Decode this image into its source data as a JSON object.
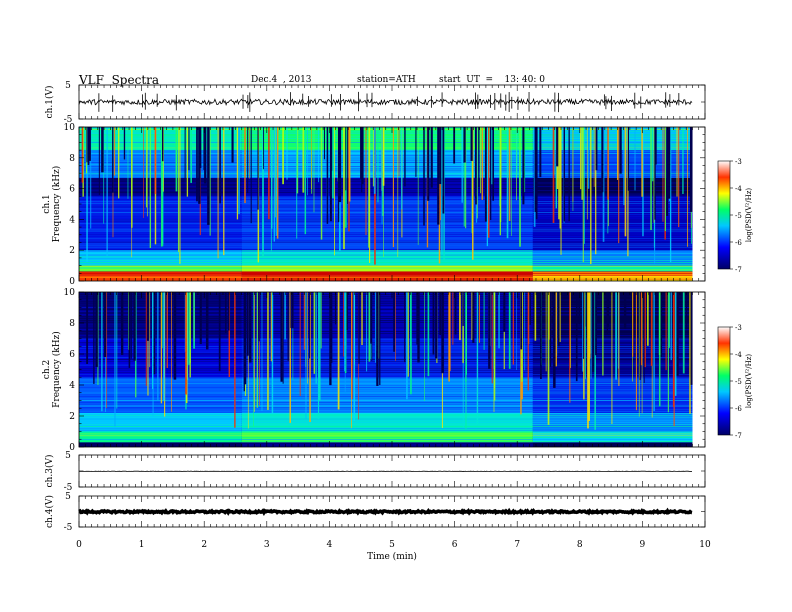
{
  "header": {
    "title": "VLF  Spectra",
    "date": "Dec.4  , 2013",
    "station": "station=ATH",
    "start": "start  UT  =    13: 40: 0"
  },
  "chart_data": [
    {
      "type": "line",
      "panel": "ch1-waveform",
      "ylabel": "ch.1(V)",
      "ylim": [
        -5,
        5
      ],
      "yticks": [
        "5",
        "-5"
      ],
      "xlim": [
        0,
        10
      ],
      "description_values": {
        "baseline_V": 0.0,
        "typical_amplitude_V": 0.8,
        "spike_amplitude_V": 3.0,
        "spike_count": 40
      }
    },
    {
      "type": "heatmap",
      "panel": "ch1-spectrogram",
      "ylabel": "ch.1",
      "ylabel2": "Frequency  (kHz)",
      "ylim": [
        0,
        10
      ],
      "yticks": [
        "0",
        "2",
        "4",
        "6",
        "8",
        "10"
      ],
      "xlim": [
        0,
        9.8
      ],
      "colorbar": {
        "label": "log(PSD(V²/Hz)",
        "range": [
          -7,
          -3
        ],
        "ticks": [
          "-3",
          "-4",
          "-5",
          "-6",
          "-7"
        ]
      },
      "bands_kHz": [
        {
          "from": 0.0,
          "to": 0.35,
          "log_psd": -3.5
        },
        {
          "from": 0.35,
          "to": 0.6,
          "log_psd": -3.3
        },
        {
          "from": 0.6,
          "to": 1.0,
          "log_psd": -4.6
        },
        {
          "from": 1.0,
          "to": 2.0,
          "log_psd": -5.3
        },
        {
          "from": 2.0,
          "to": 5.5,
          "log_psd": -6.2
        },
        {
          "from": 5.5,
          "to": 6.7,
          "log_psd": -6.8
        },
        {
          "from": 6.7,
          "to": 8.5,
          "log_psd": -5.6
        },
        {
          "from": 8.5,
          "to": 10.0,
          "log_psd": -5.0
        }
      ],
      "change_times_min": [
        2.6,
        7.25
      ]
    },
    {
      "type": "heatmap",
      "panel": "ch2-spectrogram",
      "ylabel": "ch.2",
      "ylabel2": "Frequency  (kHz)",
      "ylim": [
        0,
        10
      ],
      "yticks": [
        "0",
        "2",
        "4",
        "6",
        "8",
        "10"
      ],
      "xlim": [
        0,
        9.8
      ],
      "colorbar": {
        "label": "log(PSD(V²/Hz)",
        "range": [
          -7,
          -3
        ],
        "ticks": [
          "-3",
          "-4",
          "-5",
          "-6",
          "-7"
        ]
      },
      "bands_kHz": [
        {
          "from": 0.0,
          "to": 0.3,
          "log_psd": -6.9
        },
        {
          "from": 0.3,
          "to": 1.0,
          "log_psd": -4.9
        },
        {
          "from": 1.0,
          "to": 2.2,
          "log_psd": -5.3
        },
        {
          "from": 2.2,
          "to": 4.5,
          "log_psd": -5.8
        },
        {
          "from": 4.5,
          "to": 7.0,
          "log_psd": -6.4
        },
        {
          "from": 7.0,
          "to": 10.0,
          "log_psd": -6.8
        }
      ],
      "change_times_min": [
        2.6,
        7.25
      ]
    },
    {
      "type": "line",
      "panel": "ch3-waveform",
      "ylabel": "ch.3(V)",
      "ylim": [
        -5,
        5
      ],
      "yticks": [
        "5",
        "-5"
      ],
      "xlim": [
        0,
        10
      ],
      "description_values": {
        "baseline_V": -0.1,
        "typical_amplitude_V": 0.05
      }
    },
    {
      "type": "line",
      "panel": "ch4-waveform",
      "ylabel": "ch.4(V)",
      "ylim": [
        -5,
        5
      ],
      "yticks": [
        "5",
        "-5"
      ],
      "xlim": [
        0,
        10
      ],
      "xlabel": "Time  (min)",
      "xticks": [
        "0",
        "1",
        "2",
        "3",
        "4",
        "5",
        "6",
        "7",
        "8",
        "9",
        "10"
      ],
      "description_values": {
        "baseline_V": -0.1,
        "typical_amplitude_V": 0.3
      }
    }
  ]
}
